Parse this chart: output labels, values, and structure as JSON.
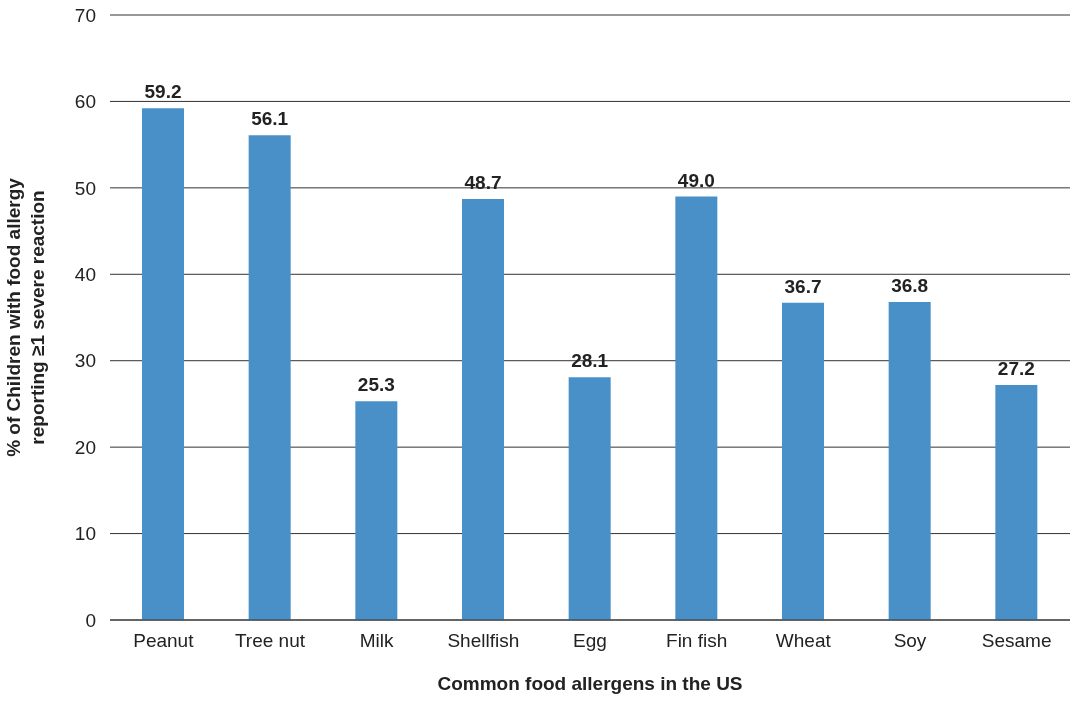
{
  "chart_data": {
    "type": "bar",
    "categories": [
      "Peanut",
      "Tree nut",
      "Milk",
      "Shellfish",
      "Egg",
      "Fin fish",
      "Wheat",
      "Soy",
      "Sesame"
    ],
    "values": [
      59.2,
      56.1,
      25.3,
      48.7,
      28.1,
      49.0,
      36.7,
      36.8,
      27.2
    ],
    "color": "#4a90c8",
    "xlabel": "Common food allergens in the US",
    "ylabel": "% of Children with food allergy\nreporting ≥1 severe reaction",
    "ylim": [
      0,
      70
    ],
    "yticks": [
      0,
      10,
      20,
      30,
      40,
      50,
      60,
      70
    ],
    "value_labels": [
      "59.2",
      "56.1",
      "25.3",
      "48.7",
      "28.1",
      "49.0",
      "36.7",
      "36.8",
      "27.2"
    ],
    "grid": "y",
    "legend": false
  }
}
